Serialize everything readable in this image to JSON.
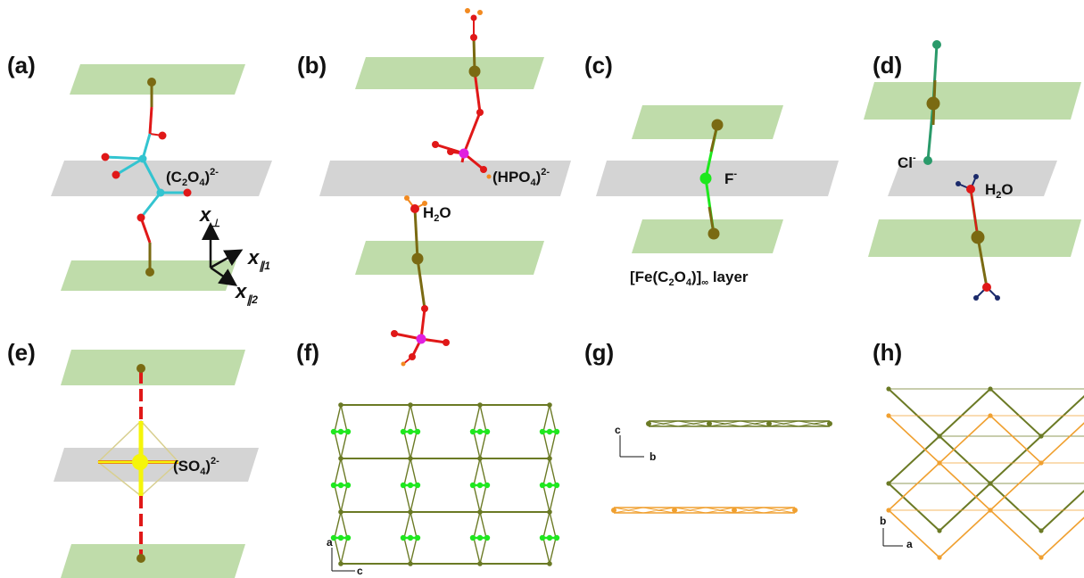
{
  "panels": {
    "a": {
      "letter": "(a)",
      "ion": "(C",
      "ion_s1": "2",
      "ion_m": "O",
      "ion_s2": "4",
      "ion_e": ")",
      "ion_sup": "2-",
      "x_perp": "x",
      "x_perp_sub": "⊥",
      "x_par1": "x",
      "x_par1_sub": "∥1",
      "x_par2": "x",
      "x_par2_sub": "∥2"
    },
    "b": {
      "letter": "(b)",
      "ion": "(HPO",
      "ion_s": "4",
      "ion_e": ")",
      "ion_sup": "2-",
      "water": "H",
      "water_s": "2",
      "water_e": "O"
    },
    "c": {
      "letter": "(c)",
      "ion": "F",
      "ion_sup": "-",
      "layer_a": "[Fe(C",
      "layer_s1": "2",
      "layer_m": "O",
      "layer_s2": "4",
      "layer_e": ")]",
      "layer_inf": "∞",
      "layer_tail": " layer"
    },
    "d": {
      "letter": "(d)",
      "ion": "Cl",
      "ion_sup": "-",
      "water": "H",
      "water_s": "2",
      "water_e": "O"
    },
    "e": {
      "letter": "(e)",
      "ion": "(SO",
      "ion_s": "4",
      "ion_e": ")",
      "ion_sup": "2-"
    },
    "f": {
      "letter": "(f)",
      "axis_v": "a",
      "axis_h": "c"
    },
    "g": {
      "letter": "(g)",
      "axis_v": "c",
      "axis_h": "b"
    },
    "h": {
      "letter": "(h)",
      "axis_v": "b",
      "axis_h": "a"
    }
  },
  "colors": {
    "layer_green": "#bfdcaa",
    "gray_band": "#d4d4d4",
    "olive": "#7a6a12",
    "red": "#e01818",
    "cyan": "#33c4d0",
    "magenta": "#e020e0",
    "green_f": "#1ee81e",
    "teal_cl": "#2a9a6a",
    "navy_h": "#1b2a6b",
    "orange_h": "#f28a20",
    "yellow_s": "#f5f50a",
    "lattice_olive": "#6b7a25",
    "lattice_orange": "#f0a030"
  }
}
